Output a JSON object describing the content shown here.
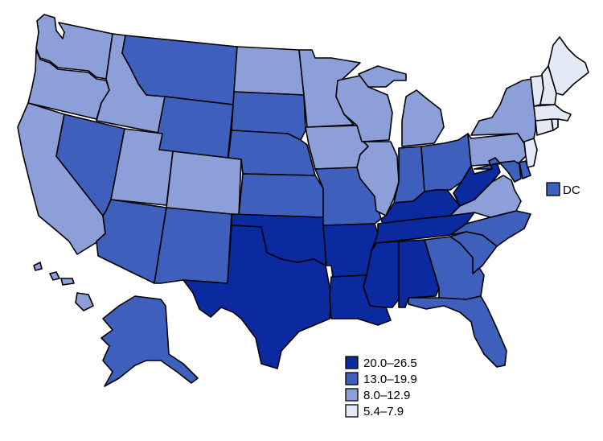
{
  "colors": {
    "bin1": "#e4e9f6",
    "bin2": "#8d9fd8",
    "bin3": "#3e5fbc",
    "bin4": "#0b2aa0"
  },
  "legend": {
    "items": [
      {
        "label": "20.0–26.5",
        "bin": "bin4"
      },
      {
        "label": "13.0–19.9",
        "bin": "bin3"
      },
      {
        "label": "8.0–12.9",
        "bin": "bin2"
      },
      {
        "label": "5.4–7.9",
        "bin": "bin1"
      }
    ]
  },
  "dc": {
    "label": "DC",
    "bin": "bin3"
  },
  "states": {
    "WA": "bin2",
    "OR": "bin2",
    "CA": "bin2",
    "ID": "bin2",
    "NV": "bin3",
    "MT": "bin3",
    "WY": "bin3",
    "UT": "bin2",
    "CO": "bin2",
    "AZ": "bin3",
    "NM": "bin3",
    "ND": "bin2",
    "SD": "bin3",
    "NE": "bin3",
    "KS": "bin3",
    "OK": "bin4",
    "TX": "bin4",
    "MN": "bin2",
    "IA": "bin2",
    "MO": "bin3",
    "AR": "bin4",
    "LA": "bin4",
    "WI": "bin2",
    "IL": "bin2",
    "MI": "bin2",
    "IN": "bin3",
    "OH": "bin3",
    "KY": "bin4",
    "TN": "bin4",
    "MS": "bin4",
    "AL": "bin4",
    "GA": "bin3",
    "FL": "bin3",
    "SC": "bin3",
    "NC": "bin3",
    "VA": "bin2",
    "WV": "bin4",
    "PA": "bin2",
    "NY": "bin2",
    "MD": "bin3",
    "DE": "bin3",
    "NJ": "bin1",
    "CT": "bin1",
    "RI": "bin1",
    "MA": "bin1",
    "VT": "bin1",
    "NH": "bin1",
    "ME": "bin1",
    "AK": "bin3",
    "HI": "bin2"
  }
}
